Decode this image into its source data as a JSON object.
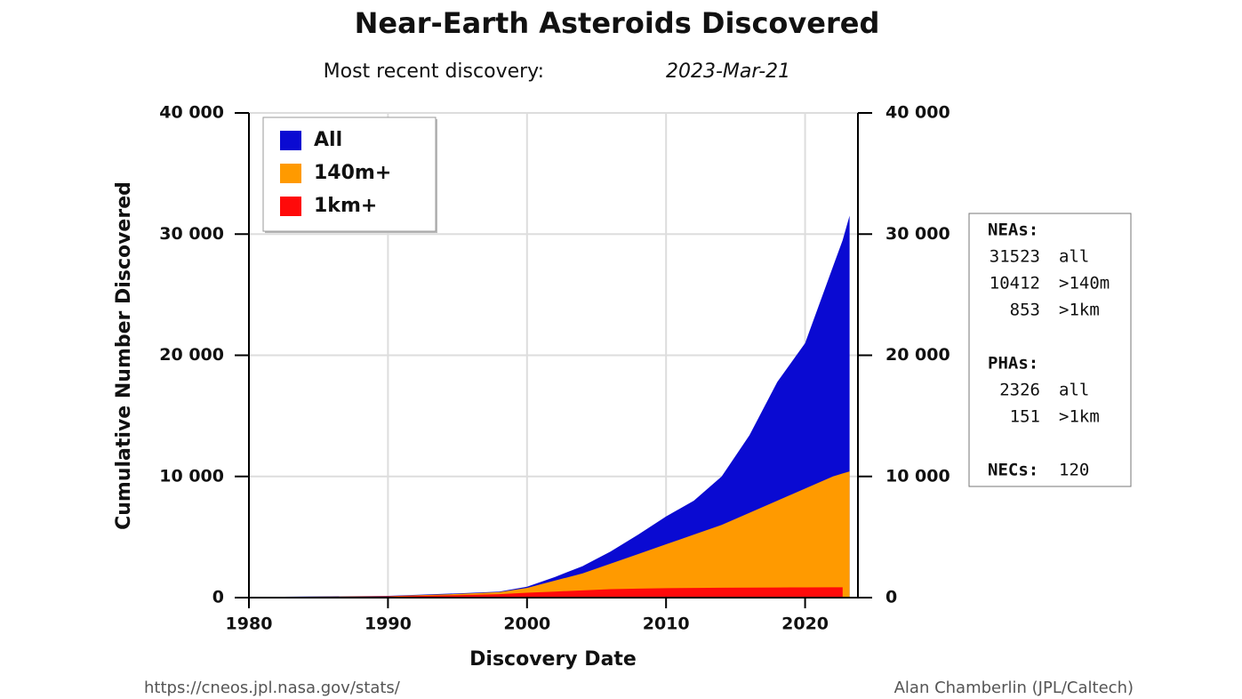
{
  "chart_data": {
    "type": "area",
    "title": "Near-Earth Asteroids Discovered",
    "subtitle": "Most recent discovery:",
    "subtitle_date": "2023-Mar-21",
    "x_label": "Discovery Date",
    "y_label": "Cumulative Number Discovered",
    "x": [
      1980,
      1985,
      1990,
      1995,
      1998,
      2000,
      2002,
      2004,
      2006,
      2008,
      2010,
      2012,
      2014,
      2016,
      2018,
      2020,
      2022,
      2022.7,
      2023.2
    ],
    "series": [
      {
        "name": "All",
        "color": "#0a0ad2",
        "values": [
          50,
          100,
          150,
          350,
          500,
          900,
          1700,
          2600,
          3800,
          5200,
          6700,
          8000,
          10000,
          13400,
          17800,
          21000,
          27300,
          29500,
          31523
        ]
      },
      {
        "name": "140m+",
        "color": "#ff9a00",
        "values": [
          40,
          80,
          120,
          300,
          450,
          800,
          1400,
          2000,
          2800,
          3600,
          4400,
          5200,
          6000,
          7000,
          8000,
          9000,
          10000,
          10250,
          10412
        ]
      },
      {
        "name": "1km+",
        "color": "#ff0a0a",
        "values": [
          30,
          60,
          100,
          200,
          280,
          400,
          500,
          600,
          700,
          740,
          780,
          800,
          815,
          825,
          835,
          845,
          850,
          853,
          null
        ]
      }
    ],
    "xlim": [
      1980,
      2023.8
    ],
    "xticks": [
      1980,
      1990,
      2000,
      2010,
      2020
    ],
    "ylim": [
      0,
      40000
    ],
    "yticks": [
      0,
      {
        "value": 10000,
        "label": "10 000"
      },
      {
        "value": 20000,
        "label": "20 000"
      },
      {
        "value": 30000,
        "label": "30 000"
      },
      {
        "value": 40000,
        "label": "40 000"
      }
    ],
    "y2lim": [
      0,
      40000
    ],
    "y2ticks": [
      0,
      {
        "value": 10000,
        "label": "10 000"
      },
      {
        "value": 20000,
        "label": "20 000"
      },
      {
        "value": 30000,
        "label": "30 000"
      },
      {
        "value": 40000,
        "label": "40 000"
      }
    ],
    "grid": true,
    "legend": "upper left"
  },
  "stats": {
    "neas": {
      "label": "NEAs:",
      "rows": [
        {
          "count": 31523,
          "label": "all"
        },
        {
          "count": 10412,
          "label": ">140m"
        },
        {
          "count": 853,
          "label": ">1km"
        }
      ]
    },
    "phas": {
      "label": "PHAs:",
      "rows": [
        {
          "count": 2326,
          "label": "all"
        },
        {
          "count": 151,
          "label": ">1km"
        }
      ]
    },
    "necs": {
      "label": "NECs:",
      "count": 120
    }
  },
  "footer": {
    "url": "https://cneos.jpl.nasa.gov/stats/",
    "credit": "Alan Chamberlin (JPL/Caltech)"
  }
}
